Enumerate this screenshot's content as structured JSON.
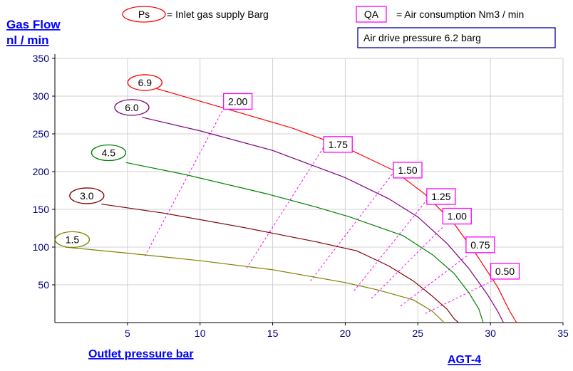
{
  "chart_data": {
    "type": "line",
    "ylabel_line1": "Gas Flow",
    "ylabel_line2": "nl / min",
    "xlabel": "Outlet pressure   bar",
    "model_label": "AGT-4",
    "legend": {
      "ps_key": "Ps",
      "ps_text": "= Inlet gas supply  Barg",
      "qa_key": "QA",
      "qa_text": "= Air consumption  Nm3 / min",
      "note": "Air drive pressure  6.2 barg"
    },
    "xlim": [
      0,
      35
    ],
    "ylim": [
      0,
      350
    ],
    "x_ticks": [
      5,
      10,
      15,
      20,
      25,
      30,
      35
    ],
    "y_ticks": [
      50,
      100,
      150,
      200,
      250,
      300,
      350
    ],
    "x_tick_labels": [
      "5",
      "10",
      "15",
      "20",
      "25",
      "30",
      "35"
    ],
    "y_tick_labels": [
      "50",
      "100",
      "150",
      "200",
      "250",
      "300",
      "350"
    ],
    "grid": true,
    "series": [
      {
        "name": "6.9",
        "color": "#ff0000",
        "points": [
          [
            7.0,
            310
          ],
          [
            11.5,
            285
          ],
          [
            16.3,
            258
          ],
          [
            20.0,
            232
          ],
          [
            23.3,
            202
          ],
          [
            25.5,
            170
          ],
          [
            27.5,
            131
          ],
          [
            29.0,
            91
          ],
          [
            30.5,
            47
          ],
          [
            31.3,
            16
          ],
          [
            31.8,
            0
          ]
        ]
      },
      {
        "name": "6.0",
        "color": "#800080",
        "points": [
          [
            6.0,
            272
          ],
          [
            10.0,
            254
          ],
          [
            15.0,
            228
          ],
          [
            20.0,
            192
          ],
          [
            23.0,
            164
          ],
          [
            25.0,
            140
          ],
          [
            27.0,
            105
          ],
          [
            28.5,
            72
          ],
          [
            29.8,
            37
          ],
          [
            30.5,
            15
          ],
          [
            30.9,
            0
          ]
        ]
      },
      {
        "name": "4.5",
        "color": "#008000",
        "points": [
          [
            4.9,
            212
          ],
          [
            9.0,
            196
          ],
          [
            14.5,
            171
          ],
          [
            18.0,
            153
          ],
          [
            20.3,
            140
          ],
          [
            24.0,
            115
          ],
          [
            26.0,
            90
          ],
          [
            27.5,
            65
          ],
          [
            28.5,
            40
          ],
          [
            29.2,
            18
          ],
          [
            29.5,
            0
          ]
        ]
      },
      {
        "name": "3.0",
        "color": "#800000",
        "points": [
          [
            3.2,
            157
          ],
          [
            7.5,
            145
          ],
          [
            13.0,
            126
          ],
          [
            18.0,
            107
          ],
          [
            20.8,
            95
          ],
          [
            23.0,
            75
          ],
          [
            24.7,
            55
          ],
          [
            26.0,
            35
          ],
          [
            27.0,
            18
          ],
          [
            27.5,
            5
          ],
          [
            27.8,
            0
          ]
        ]
      },
      {
        "name": "1.5",
        "color": "#808000",
        "points": [
          [
            0.7,
            100
          ],
          [
            5.0,
            92
          ],
          [
            10.0,
            82
          ],
          [
            15.0,
            70
          ],
          [
            20.0,
            53
          ],
          [
            22.3,
            43
          ],
          [
            24.7,
            30
          ],
          [
            26.0,
            15
          ],
          [
            26.6,
            4
          ],
          [
            26.8,
            0
          ]
        ]
      }
    ],
    "curve_labels": [
      {
        "text": "6.9",
        "x": 6.2,
        "y": 318,
        "color": "#ff0000"
      },
      {
        "text": "6.0",
        "x": 5.3,
        "y": 285,
        "color": "#800080"
      },
      {
        "text": "4.5",
        "x": 3.7,
        "y": 225,
        "color": "#008000"
      },
      {
        "text": "3.0",
        "x": 2.2,
        "y": 168,
        "color": "#800000"
      },
      {
        "text": "1.5",
        "x": 1.2,
        "y": 110,
        "color": "#808000"
      }
    ],
    "qa_lines": [
      {
        "label": "2.00",
        "points": [
          [
            6.2,
            88
          ],
          [
            11.8,
            290
          ]
        ],
        "label_pos": [
          12.6,
          293
        ]
      },
      {
        "label": "1.75",
        "points": [
          [
            13.2,
            72
          ],
          [
            18.5,
            232
          ]
        ],
        "label_pos": [
          19.5,
          236
        ]
      },
      {
        "label": "1.50",
        "points": [
          [
            17.6,
            55
          ],
          [
            23.3,
            198
          ]
        ],
        "label_pos": [
          24.3,
          202
        ]
      },
      {
        "label": "1.25",
        "points": [
          [
            20.6,
            42
          ],
          [
            25.6,
            162
          ]
        ],
        "label_pos": [
          26.6,
          167
        ]
      },
      {
        "label": "1.00",
        "points": [
          [
            21.8,
            32
          ],
          [
            26.8,
            128
          ]
        ],
        "label_pos": [
          27.7,
          141
        ]
      },
      {
        "label": "0.75",
        "points": [
          [
            23.8,
            22
          ],
          [
            28.5,
            90
          ]
        ],
        "label_pos": [
          29.3,
          103
        ]
      },
      {
        "label": "0.50",
        "points": [
          [
            25.5,
            12
          ],
          [
            30.3,
            57
          ]
        ],
        "label_pos": [
          31.0,
          68
        ]
      }
    ]
  }
}
